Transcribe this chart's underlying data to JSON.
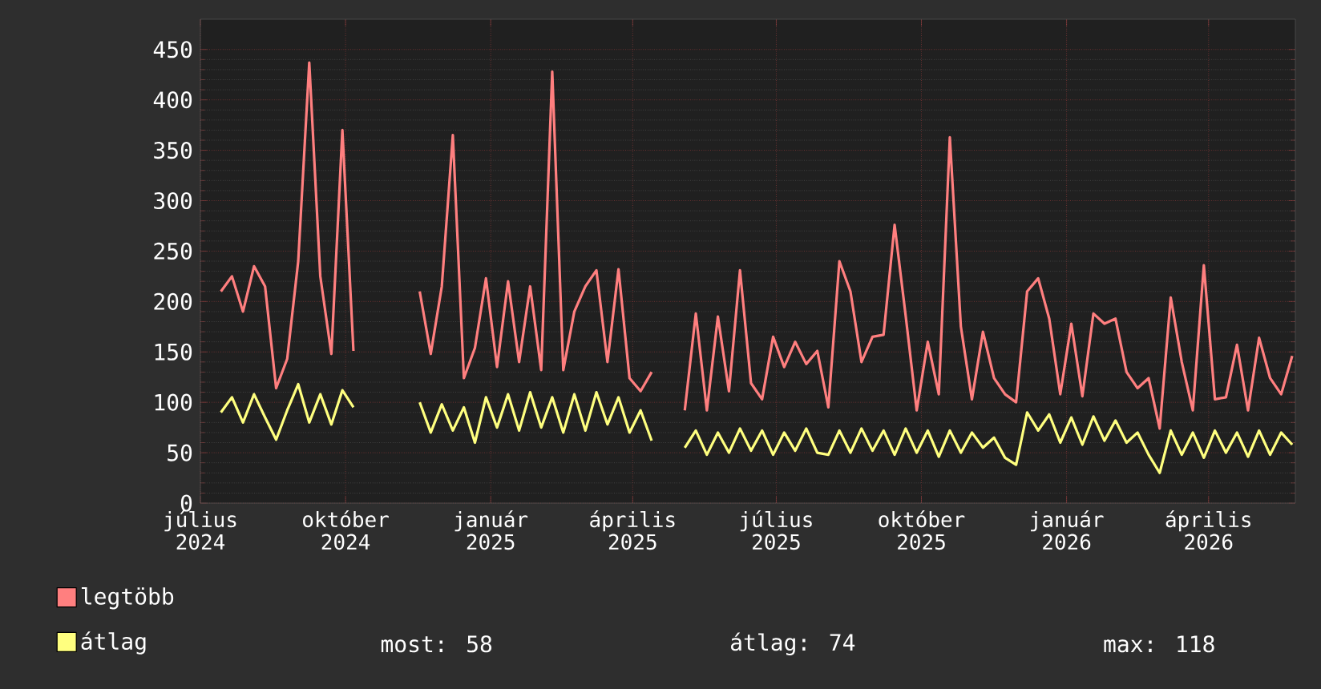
{
  "chart_data": {
    "type": "line",
    "x": [
      "2024-07-14",
      "2024-07-21",
      "2024-07-28",
      "2024-08-04",
      "2024-08-11",
      "2024-08-18",
      "2024-08-25",
      "2024-09-01",
      "2024-09-08",
      "2024-09-15",
      "2024-09-22",
      "2024-09-29",
      "2024-10-06",
      "2024-10-13",
      "2024-10-20",
      "2024-10-27",
      "2024-11-03",
      "2024-11-10",
      "2024-11-17",
      "2024-11-24",
      "2024-12-01",
      "2024-12-08",
      "2024-12-15",
      "2024-12-22",
      "2024-12-29",
      "2025-01-05",
      "2025-01-12",
      "2025-01-19",
      "2025-01-26",
      "2025-02-02",
      "2025-02-09",
      "2025-02-16",
      "2025-02-23",
      "2025-03-02",
      "2025-03-09",
      "2025-03-16",
      "2025-03-23",
      "2025-03-30",
      "2025-04-06",
      "2025-04-13",
      "2025-04-20",
      "2025-04-27",
      "2025-05-04",
      "2025-05-11",
      "2025-05-18",
      "2025-05-25",
      "2025-06-01",
      "2025-06-08",
      "2025-06-15",
      "2025-06-22",
      "2025-06-29",
      "2025-07-06",
      "2025-07-13",
      "2025-07-20",
      "2025-07-27",
      "2025-08-03",
      "2025-08-10",
      "2025-08-17",
      "2025-08-24",
      "2025-08-31",
      "2025-09-07",
      "2025-09-14",
      "2025-09-21",
      "2025-09-28",
      "2025-10-05",
      "2025-10-12",
      "2025-10-19",
      "2025-10-26",
      "2025-11-02",
      "2025-11-09",
      "2025-11-16",
      "2025-11-23",
      "2025-11-30",
      "2025-12-07",
      "2025-12-14",
      "2025-12-21",
      "2025-12-28",
      "2026-01-04",
      "2026-01-11",
      "2026-01-18",
      "2026-01-25",
      "2026-02-01",
      "2026-02-08",
      "2026-02-15",
      "2026-02-22",
      "2026-03-01",
      "2026-03-08",
      "2026-03-15",
      "2026-03-22",
      "2026-03-29",
      "2026-04-05",
      "2026-04-12",
      "2026-04-19",
      "2026-04-26",
      "2026-05-03",
      "2026-05-10",
      "2026-05-17",
      "2026-05-24"
    ],
    "series": [
      {
        "name": "legtöbb",
        "color": "#ff7f7f",
        "values": [
          210,
          225,
          190,
          235,
          215,
          114,
          143,
          240,
          437,
          225,
          148,
          370,
          151,
          null,
          null,
          null,
          null,
          null,
          210,
          148,
          215,
          365,
          124,
          154,
          223,
          135,
          220,
          140,
          215,
          132,
          428,
          132,
          190,
          215,
          231,
          140,
          232,
          124,
          111,
          130,
          null,
          null,
          92,
          188,
          92,
          185,
          111,
          231,
          119,
          103,
          165,
          135,
          160,
          138,
          151,
          95,
          240,
          210,
          140,
          165,
          167,
          276,
          186,
          92,
          160,
          108,
          363,
          175,
          103,
          170,
          124,
          108,
          100,
          210,
          223,
          183,
          108,
          178,
          106,
          188,
          178,
          183,
          130,
          114,
          124,
          74,
          204,
          140,
          92,
          236,
          103,
          105,
          157,
          92,
          164,
          124,
          108,
          146
        ]
      },
      {
        "name": "átlag",
        "color": "#ffff7f",
        "values": [
          90,
          105,
          80,
          108,
          85,
          63,
          92,
          118,
          80,
          108,
          78,
          112,
          95,
          null,
          null,
          null,
          null,
          null,
          100,
          70,
          98,
          72,
          95,
          60,
          105,
          75,
          108,
          72,
          110,
          75,
          105,
          70,
          108,
          72,
          110,
          78,
          105,
          70,
          92,
          62,
          null,
          null,
          55,
          72,
          48,
          70,
          50,
          74,
          52,
          72,
          48,
          70,
          52,
          74,
          50,
          48,
          72,
          50,
          74,
          52,
          72,
          48,
          74,
          50,
          72,
          46,
          72,
          50,
          70,
          55,
          65,
          45,
          38,
          90,
          72,
          88,
          60,
          85,
          58,
          86,
          62,
          82,
          60,
          70,
          48,
          30,
          72,
          48,
          70,
          45,
          72,
          50,
          70,
          46,
          72,
          48,
          70,
          58
        ]
      }
    ],
    "xlim": [
      "2024-07-01",
      "2026-05-26"
    ],
    "xticks": [
      {
        "value": "2024-07-01",
        "label": "július 2024"
      },
      {
        "value": "2024-10-01",
        "label": "október 2024"
      },
      {
        "value": "2025-01-01",
        "label": "január 2025"
      },
      {
        "value": "2025-04-01",
        "label": "április 2025"
      },
      {
        "value": "2025-07-01",
        "label": "július 2025"
      },
      {
        "value": "2025-10-01",
        "label": "október 2025"
      },
      {
        "value": "2026-01-01",
        "label": "január 2026"
      },
      {
        "value": "2026-04-01",
        "label": "április 2026"
      }
    ],
    "ylim": [
      0,
      480
    ],
    "yticks": [
      0,
      50,
      100,
      150,
      200,
      250,
      300,
      350,
      400,
      450
    ],
    "grid": true,
    "legend": "bottom left",
    "annotations": [
      "most: 58",
      "átlag: 74",
      "max: 118"
    ]
  }
}
